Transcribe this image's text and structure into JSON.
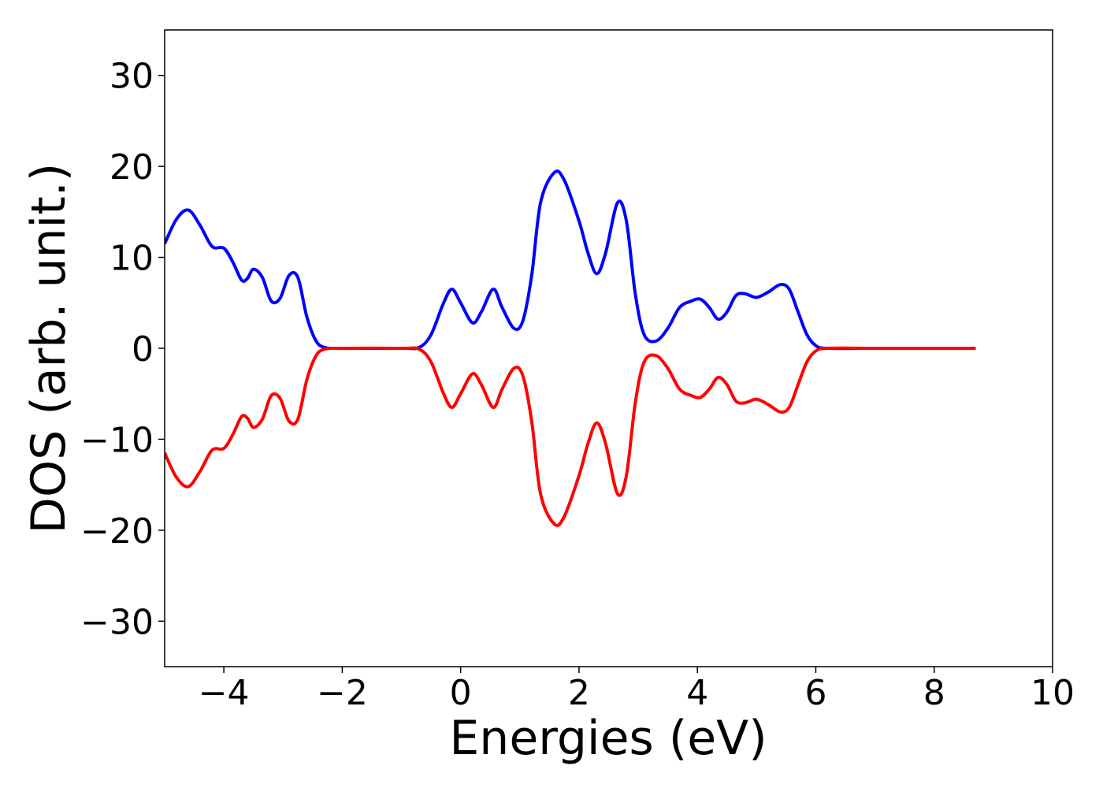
{
  "chart_data": {
    "type": "line",
    "title": "",
    "xlabel": "Energies (eV)",
    "ylabel": "DOS (arb. unit.)",
    "xlim": [
      -5.0,
      10.0
    ],
    "ylim": [
      -35,
      35
    ],
    "xticks": [
      -4,
      -2,
      0,
      2,
      4,
      6,
      8,
      10
    ],
    "xtick_labels": [
      "−4",
      "−2",
      "0",
      "2",
      "4",
      "6",
      "8",
      "10"
    ],
    "yticks": [
      -30,
      -20,
      -10,
      0,
      10,
      20,
      30
    ],
    "ytick_labels": [
      "−30",
      "−20",
      "−10",
      "0",
      "10",
      "20",
      "30"
    ],
    "grid": false,
    "legend": "none",
    "series": [
      {
        "color": "#0000ff",
        "x": [
          -5.0,
          -4.8,
          -4.6,
          -4.4,
          -4.2,
          -4.0,
          -3.85,
          -3.7,
          -3.6,
          -3.5,
          -3.35,
          -3.2,
          -3.05,
          -2.9,
          -2.75,
          -2.6,
          -2.45,
          -2.3,
          -2.0,
          -1.0,
          -0.7,
          -0.5,
          -0.3,
          -0.15,
          0.0,
          0.2,
          0.35,
          0.55,
          0.7,
          0.9,
          1.05,
          1.2,
          1.35,
          1.58,
          1.75,
          2.0,
          2.15,
          2.3,
          2.45,
          2.65,
          2.8,
          2.95,
          3.1,
          3.3,
          3.5,
          3.7,
          3.9,
          4.05,
          4.2,
          4.35,
          4.5,
          4.65,
          4.8,
          5.0,
          5.2,
          5.4,
          5.55,
          5.7,
          5.85,
          6.0,
          6.2,
          7.0,
          8.0,
          8.7
        ],
        "y": [
          11.5,
          14.2,
          15.2,
          13.5,
          11.2,
          11.0,
          9.5,
          7.5,
          7.7,
          8.7,
          7.8,
          5.2,
          5.5,
          8.0,
          7.8,
          3.5,
          0.9,
          0.1,
          0.0,
          0.0,
          0.1,
          1.5,
          4.8,
          6.5,
          5.0,
          2.8,
          4.0,
          6.5,
          4.5,
          2.2,
          3.0,
          8.0,
          16.0,
          19.3,
          18.5,
          14.0,
          10.5,
          8.2,
          10.5,
          16.0,
          14.0,
          6.0,
          1.5,
          0.8,
          2.2,
          4.5,
          5.2,
          5.4,
          4.5,
          3.2,
          4.0,
          5.8,
          6.0,
          5.6,
          6.2,
          7.0,
          6.5,
          4.0,
          1.5,
          0.3,
          0.0,
          0.0,
          0.0,
          0.0
        ]
      },
      {
        "color": "#ff0000",
        "x": [
          -5.0,
          -4.8,
          -4.6,
          -4.4,
          -4.2,
          -4.0,
          -3.85,
          -3.7,
          -3.6,
          -3.5,
          -3.35,
          -3.2,
          -3.05,
          -2.9,
          -2.75,
          -2.6,
          -2.45,
          -2.3,
          -2.0,
          -1.0,
          -0.7,
          -0.5,
          -0.3,
          -0.15,
          0.0,
          0.2,
          0.35,
          0.55,
          0.7,
          0.9,
          1.05,
          1.2,
          1.35,
          1.58,
          1.75,
          2.0,
          2.15,
          2.3,
          2.45,
          2.65,
          2.8,
          2.95,
          3.1,
          3.3,
          3.5,
          3.7,
          3.9,
          4.05,
          4.2,
          4.35,
          4.5,
          4.65,
          4.8,
          5.0,
          5.2,
          5.4,
          5.55,
          5.7,
          5.85,
          6.0,
          6.2,
          7.0,
          8.0,
          8.7
        ],
        "y": [
          -11.5,
          -14.2,
          -15.2,
          -13.5,
          -11.2,
          -11.0,
          -9.5,
          -7.5,
          -7.7,
          -8.7,
          -7.8,
          -5.2,
          -5.5,
          -8.0,
          -7.8,
          -3.5,
          -0.9,
          -0.1,
          0.0,
          0.0,
          -0.1,
          -1.5,
          -4.8,
          -6.5,
          -5.0,
          -2.8,
          -4.0,
          -6.5,
          -4.5,
          -2.2,
          -3.0,
          -8.0,
          -16.0,
          -19.3,
          -18.5,
          -14.0,
          -10.5,
          -8.2,
          -10.5,
          -16.0,
          -14.0,
          -6.0,
          -1.5,
          -0.8,
          -2.2,
          -4.5,
          -5.2,
          -5.4,
          -4.5,
          -3.2,
          -4.0,
          -5.8,
          -6.0,
          -5.6,
          -6.2,
          -7.0,
          -6.5,
          -4.0,
          -1.5,
          -0.3,
          0.0,
          0.0,
          0.0,
          0.0
        ]
      }
    ]
  }
}
